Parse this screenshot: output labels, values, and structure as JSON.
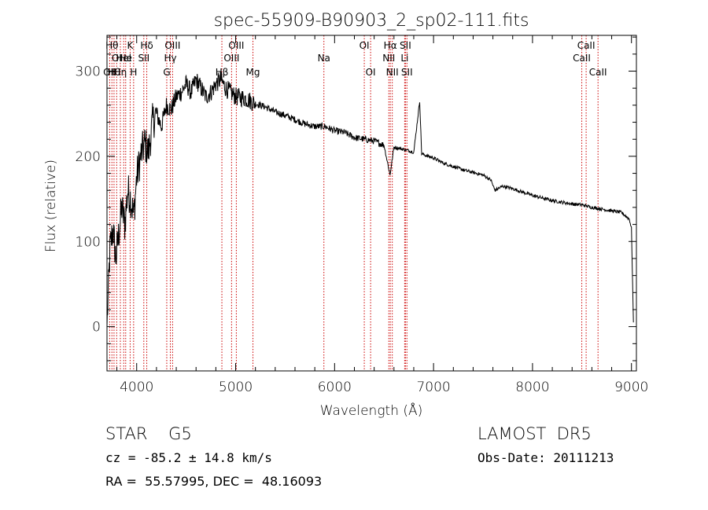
{
  "chart_data": {
    "type": "line",
    "title": "spec-55909-B90903_2_sp02-111.fits",
    "xlabel": "Wavelength (Å)",
    "ylabel": "Flux (relative)",
    "xlim": [
      3700,
      9050
    ],
    "ylim": [
      -52,
      342
    ],
    "xticks": [
      4000,
      5000,
      6000,
      7000,
      8000,
      9000
    ],
    "yticks": [
      0,
      100,
      200,
      300
    ],
    "grid": false,
    "line_color": "#000000",
    "marker_color": "#cc0000",
    "series": [
      {
        "x": [
          3700,
          3730,
          3760,
          3790,
          3820,
          3850,
          3880,
          3910,
          3940,
          3970,
          4000,
          4040,
          4080,
          4120,
          4160,
          4200,
          4250,
          4300,
          4350,
          4400,
          4450,
          4500,
          4550,
          4600,
          4650,
          4700,
          4750,
          4800,
          4850,
          4900,
          4950,
          5000,
          5100,
          5200,
          5300,
          5400,
          5500,
          5600,
          5700,
          5800,
          5900,
          6000,
          6100,
          6200,
          6300,
          6400,
          6500,
          6560,
          6600,
          6700,
          6800,
          6860,
          6880,
          6900,
          7000,
          7100,
          7200,
          7300,
          7400,
          7500,
          7580,
          7620,
          7700,
          7800,
          7900,
          8000,
          8100,
          8200,
          8300,
          8400,
          8500,
          8600,
          8700,
          8800,
          8900,
          8980,
          9000,
          9020
        ],
        "y": [
          0,
          90,
          115,
          80,
          110,
          140,
          120,
          160,
          150,
          130,
          175,
          200,
          215,
          205,
          240,
          250,
          235,
          260,
          255,
          270,
          275,
          285,
          275,
          290,
          280,
          270,
          275,
          285,
          290,
          280,
          275,
          270,
          268,
          262,
          258,
          252,
          248,
          243,
          238,
          235,
          235,
          230,
          228,
          222,
          220,
          218,
          213,
          178,
          211,
          208,
          205,
          265,
          203,
          202,
          198,
          192,
          188,
          184,
          181,
          178,
          172,
          160,
          165,
          162,
          158,
          154,
          151,
          148,
          146,
          144,
          143,
          140,
          138,
          136,
          134,
          126,
          115,
          5
        ]
      }
    ],
    "lines": [
      {
        "x": 3727,
        "label": "OII",
        "row": 3
      },
      {
        "x": 3750,
        "label": "Hθ",
        "row": 1
      },
      {
        "x": 3771,
        "label": "Hθ",
        "row": 3
      },
      {
        "x": 3798,
        "label": "OI",
        "row": 2
      },
      {
        "x": 3835,
        "label": "Hη",
        "row": 3
      },
      {
        "x": 3869,
        "label": "Hel",
        "row": 2
      },
      {
        "x": 3889,
        "label": "He",
        "row": 2
      },
      {
        "x": 3934,
        "label": "K",
        "row": 1
      },
      {
        "x": 3969,
        "label": "H",
        "row": 3
      },
      {
        "x": 4072,
        "label": "SII",
        "row": 2
      },
      {
        "x": 4102,
        "label": "Hδ",
        "row": 1
      },
      {
        "x": 4304,
        "label": "G",
        "row": 3
      },
      {
        "x": 4340,
        "label": "Hγ",
        "row": 2
      },
      {
        "x": 4363,
        "label": "OIII",
        "row": 1
      },
      {
        "x": 4861,
        "label": "Hβ",
        "row": 3
      },
      {
        "x": 4959,
        "label": "OIII",
        "row": 2
      },
      {
        "x": 5007,
        "label": "OIII",
        "row": 1
      },
      {
        "x": 5175,
        "label": "Mg",
        "row": 3
      },
      {
        "x": 5892,
        "label": "Na",
        "row": 2
      },
      {
        "x": 6300,
        "label": "OI",
        "row": 1
      },
      {
        "x": 6364,
        "label": "OI",
        "row": 3
      },
      {
        "x": 6548,
        "label": "NII",
        "row": 2
      },
      {
        "x": 6563,
        "label": "Hα",
        "row": 1
      },
      {
        "x": 6583,
        "label": "NII",
        "row": 3
      },
      {
        "x": 6708,
        "label": "Li",
        "row": 2
      },
      {
        "x": 6716,
        "label": "SII",
        "row": 1
      },
      {
        "x": 6731,
        "label": "SII",
        "row": 3
      },
      {
        "x": 8498,
        "label": "CaII",
        "row": 2
      },
      {
        "x": 8542,
        "label": "CaII",
        "row": 1
      },
      {
        "x": 8662,
        "label": "CaII",
        "row": 3
      }
    ]
  },
  "footer": {
    "object_type": "STAR    G5",
    "survey": "LAMOST  DR5",
    "cz": "cz = -85.2 ± 14.8 km/s",
    "obs_date": "Obs-Date: 20111213",
    "coords": "RA =  55.57995, DEC =  48.16093"
  }
}
